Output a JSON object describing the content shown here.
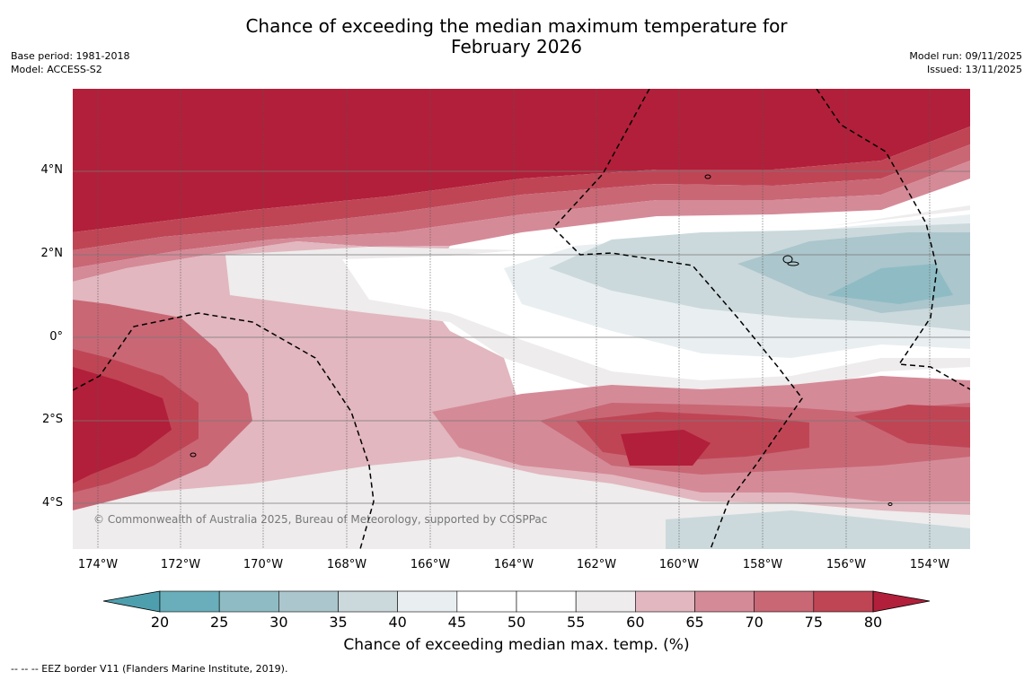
{
  "title_line1": "Chance of exceeding the median maximum temperature for",
  "title_line2": "February 2026",
  "meta_left": {
    "base_period": "Base period: 1981-2018",
    "model": "Model: ACCESS-S2"
  },
  "meta_right": {
    "model_run": "Model run: 09/11/2025",
    "issued": "Issued: 13/11/2025"
  },
  "lat_labels": [
    "4°N",
    "2°N",
    "0°",
    "2°S",
    "4°S"
  ],
  "lon_labels": [
    "174°W",
    "172°W",
    "170°W",
    "168°W",
    "166°W",
    "164°W",
    "162°W",
    "160°W",
    "158°W",
    "156°W",
    "154°W"
  ],
  "copyright": "© Commonwealth of Australia 2025, Bureau of Meteorology, supported by COSPPac",
  "colorbar": {
    "ticks": [
      "20",
      "25",
      "30",
      "35",
      "40",
      "45",
      "50",
      "55",
      "60",
      "65",
      "70",
      "75",
      "80"
    ],
    "colors": [
      "#6aaebb",
      "#8fbcc4",
      "#abc6cc",
      "#cbd9dc",
      "#e9eff1",
      "#ffffff",
      "#ffffff",
      "#eeecec",
      "#e2b7bf",
      "#d58a97",
      "#c96775",
      "#bf4555"
    ],
    "under_color": "#4e9fae",
    "over_color": "#b21f3a",
    "label": "Chance of exceeding median max. temp. (%)"
  },
  "footnote": "--  --  -- EEZ border V11 (Flanders Marine Institute, 2019)."
}
